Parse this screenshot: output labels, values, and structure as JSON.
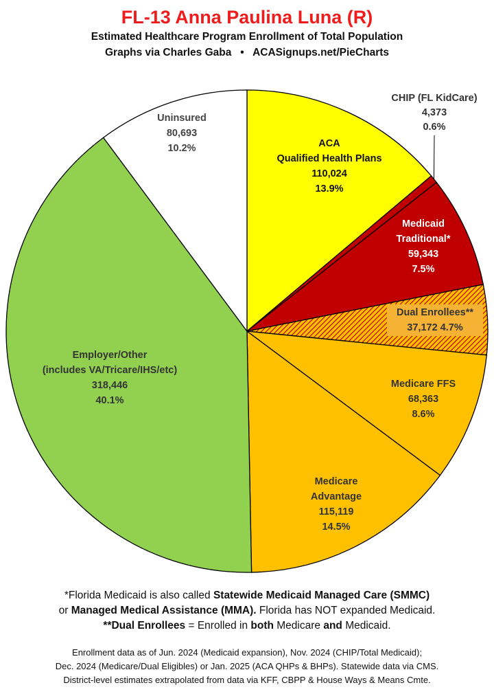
{
  "header": {
    "title": "FL-13 Anna Paulina Luna (R)",
    "subtitle": "Estimated Healthcare Program Enrollment of Total Population",
    "credit_left": "Graphs via Charles Gaba",
    "credit_sep": "•",
    "credit_right": "ACASignups.net/PieCharts"
  },
  "chart_data": {
    "type": "pie",
    "title": "FL-13 Anna Paulina Luna (R)",
    "slices": [
      {
        "lines": [
          "ACA",
          "Qualified Health Plans"
        ],
        "value": 110024,
        "value_label": "110,024",
        "percent_label": "13.9%",
        "percent": 13.9,
        "color": "#ffff00",
        "pattern": false
      },
      {
        "lines": [
          "CHIP (FL KidCare)"
        ],
        "value": 4373,
        "value_label": "4,373",
        "percent_label": "0.6%",
        "percent": 0.6,
        "color": "#c00000",
        "pattern": false
      },
      {
        "lines": [
          "Medicaid",
          "Traditional*"
        ],
        "value": 59343,
        "value_label": "59,343",
        "percent_label": "7.5%",
        "percent": 7.5,
        "color": "#c00000",
        "pattern": false
      },
      {
        "lines": [
          "Dual Enrollees**"
        ],
        "value": 37172,
        "value_label": "37,172",
        "percent_label": "4.7%",
        "percent": 4.7,
        "color": "#ffc000",
        "pattern": true
      },
      {
        "lines": [
          "Medicare FFS"
        ],
        "value": 68363,
        "value_label": "68,363",
        "percent_label": "8.6%",
        "percent": 8.6,
        "color": "#ffc000",
        "pattern": false
      },
      {
        "lines": [
          "Medicare",
          "Advantage"
        ],
        "value": 115119,
        "value_label": "115,119",
        "percent_label": "14.5%",
        "percent": 14.5,
        "color": "#ffc000",
        "pattern": false
      },
      {
        "lines": [
          "Employer/Other",
          "(includes VA/Tricare/IHS/etc)"
        ],
        "value": 318446,
        "value_label": "318,446",
        "percent_label": "40.1%",
        "percent": 40.1,
        "color": "#92d050",
        "pattern": false
      },
      {
        "lines": [
          "Uninsured"
        ],
        "value": 80693,
        "value_label": "80,693",
        "percent_label": "10.2%",
        "percent": 10.2,
        "color": "#ffffff",
        "pattern": false
      }
    ],
    "legend": "none"
  },
  "footnotes": {
    "line1_a": "*Florida Medicaid is also called ",
    "line1_b": "Statewide Medicaid Managed Care (SMMC)",
    "line2_a": "or ",
    "line2_b": "Managed Medical Assistance (MMA).",
    "line2_c": " Florida has NOT expanded Medicaid.",
    "line3_a": "**Dual Enrollees",
    "line3_b": " = Enrolled in ",
    "line3_c": "both",
    "line3_d": " Medicare ",
    "line3_e": "and",
    "line3_f": " Medicaid."
  },
  "sources": {
    "line1": "Enrollment data as of Jun. 2024 (Medicaid expansion), Nov. 2024 (CHIP/Total Medicaid);",
    "line2": "Dec. 2024 (Medicare/Dual Eligibles) or Jan. 2025 (ACA QHPs & BHPs). Statewide data via CMS.",
    "line3": "District-level estimates extrapolated from data via KFF, CBPP & House Ways & Means Cmte."
  }
}
